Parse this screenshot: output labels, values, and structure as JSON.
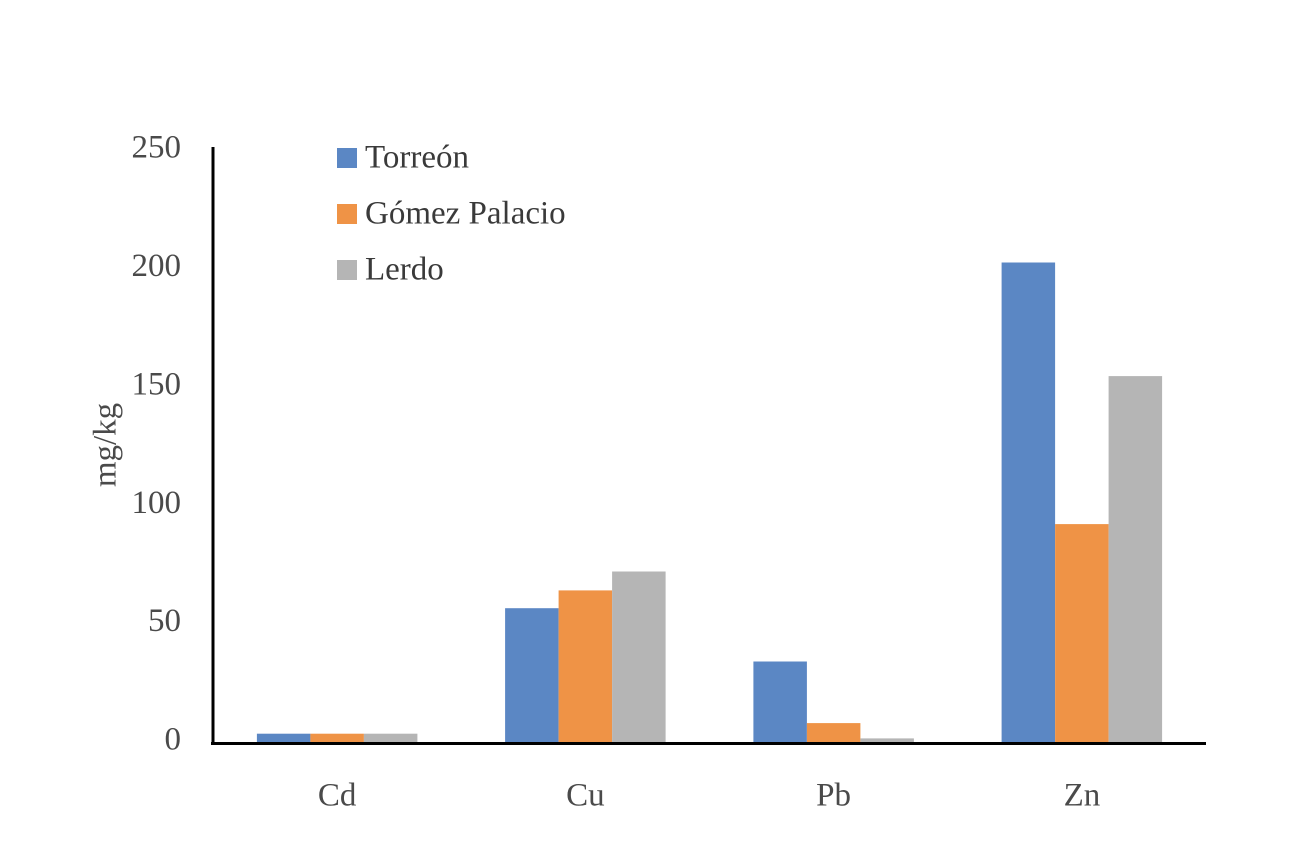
{
  "chart_data": {
    "type": "bar",
    "categories": [
      "Cd",
      "Cu",
      "Pb",
      "Zn"
    ],
    "series": [
      {
        "name": "Torreón",
        "color": "#5b87c4",
        "values": [
          3.5,
          56.5,
          34,
          202.5
        ]
      },
      {
        "name": "Gómez Palacio",
        "color": "#ef9346",
        "values": [
          3.5,
          64,
          8,
          92
        ]
      },
      {
        "name": "Lerdo",
        "color": "#b5b5b5",
        "values": [
          3.5,
          72,
          1.5,
          154.5
        ]
      }
    ],
    "ylabel": "mg/kg",
    "ylim": [
      0,
      250
    ],
    "yticks": [
      "0",
      "50",
      "100",
      "150",
      "200",
      "250"
    ],
    "grid": false,
    "legend_position": "top-left"
  }
}
